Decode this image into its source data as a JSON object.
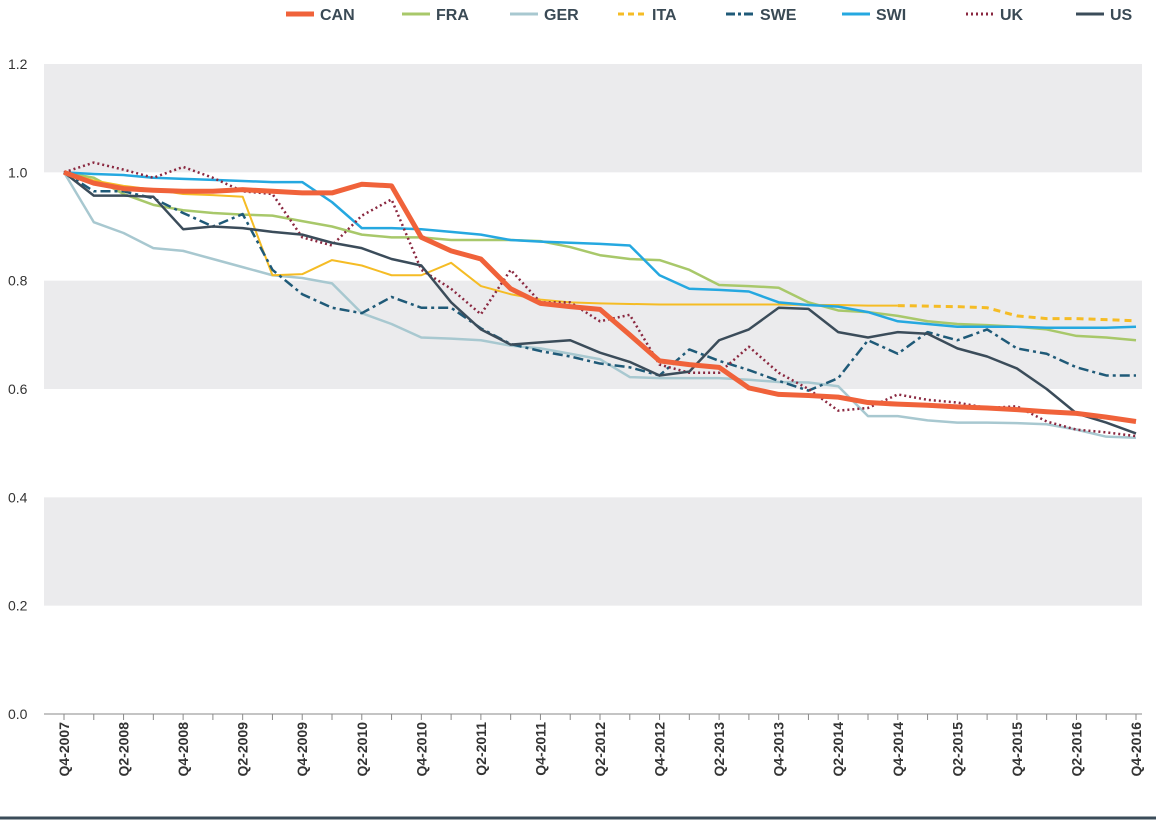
{
  "chart_data": {
    "type": "line",
    "title": "",
    "xlabel": "",
    "ylabel": "",
    "ylim": [
      0,
      1.2
    ],
    "y_ticks": [
      "0.0",
      "0.2",
      "0.4",
      "0.6",
      "0.8",
      "1.0",
      "1.2"
    ],
    "y_tick_values": [
      0,
      0.2,
      0.4,
      0.6,
      0.8,
      1.0,
      1.2
    ],
    "grid": "alternating horizontal bands",
    "legend_position": "top",
    "x_tick_labels": [
      "Q4-2007",
      "Q2-2008",
      "Q4-2008",
      "Q2-2009",
      "Q4-2009",
      "Q2-2010",
      "Q4-2010",
      "Q2-2011",
      "Q4-2011",
      "Q2-2012",
      "Q4-2012",
      "Q2-2013",
      "Q4-2013",
      "Q2-2014",
      "Q4-2014",
      "Q2-2015",
      "Q4-2015",
      "Q2-2016",
      "Q4-2016"
    ],
    "x": [
      "Q4-2007",
      "Q1-2008",
      "Q2-2008",
      "Q3-2008",
      "Q4-2008",
      "Q1-2009",
      "Q2-2009",
      "Q3-2009",
      "Q4-2009",
      "Q1-2010",
      "Q2-2010",
      "Q3-2010",
      "Q4-2010",
      "Q1-2011",
      "Q2-2011",
      "Q3-2011",
      "Q4-2011",
      "Q1-2012",
      "Q2-2012",
      "Q3-2012",
      "Q4-2012",
      "Q1-2013",
      "Q2-2013",
      "Q3-2013",
      "Q4-2013",
      "Q1-2014",
      "Q2-2014",
      "Q3-2014",
      "Q4-2014",
      "Q1-2015",
      "Q2-2015",
      "Q3-2015",
      "Q4-2015",
      "Q1-2016",
      "Q2-2016",
      "Q3-2016",
      "Q4-2016"
    ],
    "series": [
      {
        "name": "CAN",
        "color": "#f0623a",
        "style": "solid-thick",
        "values": [
          1.0,
          0.98,
          0.97,
          0.967,
          0.965,
          0.965,
          0.968,
          0.965,
          0.962,
          0.962,
          0.978,
          0.975,
          0.88,
          0.855,
          0.84,
          0.785,
          0.758,
          0.752,
          0.747,
          0.7,
          0.652,
          0.645,
          0.64,
          0.602,
          0.59,
          0.588,
          0.585,
          0.575,
          0.572,
          0.57,
          0.567,
          0.565,
          0.562,
          0.558,
          0.555,
          0.548,
          0.54
        ]
      },
      {
        "name": "FRA",
        "color": "#a8c86a",
        "style": "solid",
        "values": [
          1.0,
          0.99,
          0.96,
          0.94,
          0.93,
          0.925,
          0.922,
          0.92,
          0.91,
          0.9,
          0.885,
          0.88,
          0.88,
          0.875,
          0.875,
          0.875,
          0.873,
          0.862,
          0.847,
          0.84,
          0.838,
          0.82,
          0.792,
          0.79,
          0.787,
          0.76,
          0.745,
          0.742,
          0.735,
          0.725,
          0.72,
          0.718,
          0.715,
          0.71,
          0.698,
          0.695,
          0.69
        ]
      },
      {
        "name": "GER",
        "color": "#a8c8d0",
        "style": "solid",
        "values": [
          1.0,
          0.908,
          0.888,
          0.86,
          0.855,
          0.84,
          0.825,
          0.81,
          0.805,
          0.795,
          0.74,
          0.72,
          0.695,
          0.693,
          0.69,
          0.68,
          0.675,
          0.665,
          0.655,
          0.622,
          0.62,
          0.62,
          0.62,
          0.617,
          0.613,
          0.612,
          0.605,
          0.55,
          0.55,
          0.542,
          0.538,
          0.538,
          0.537,
          0.535,
          0.525,
          0.512,
          0.51
        ]
      },
      {
        "name": "ITA",
        "color": "#f5bc25",
        "style": "solid-then-dashed",
        "values": [
          1.0,
          0.985,
          0.975,
          0.968,
          0.96,
          0.958,
          0.955,
          0.81,
          0.812,
          0.838,
          0.828,
          0.81,
          0.81,
          0.833,
          0.79,
          0.775,
          0.765,
          0.76,
          0.758,
          0.757,
          0.756,
          0.756,
          0.756,
          0.756,
          0.756,
          0.755,
          0.755,
          0.754,
          0.754,
          0.753,
          0.752,
          0.75,
          0.735,
          0.73,
          0.73,
          0.728,
          0.726
        ]
      },
      {
        "name": "SWE",
        "color": "#1f5a78",
        "style": "dash-dot",
        "values": [
          1.0,
          0.965,
          0.965,
          0.952,
          0.925,
          0.9,
          0.923,
          0.82,
          0.775,
          0.75,
          0.74,
          0.77,
          0.75,
          0.75,
          0.712,
          0.683,
          0.67,
          0.66,
          0.647,
          0.64,
          0.625,
          0.673,
          0.652,
          0.635,
          0.615,
          0.597,
          0.62,
          0.69,
          0.665,
          0.705,
          0.69,
          0.71,
          0.675,
          0.665,
          0.64,
          0.625,
          0.625
        ]
      },
      {
        "name": "SWI",
        "color": "#25a8e0",
        "style": "solid",
        "values": [
          1.0,
          0.997,
          0.995,
          0.99,
          0.988,
          0.986,
          0.984,
          0.982,
          0.982,
          0.945,
          0.897,
          0.897,
          0.895,
          0.89,
          0.885,
          0.875,
          0.872,
          0.87,
          0.868,
          0.865,
          0.81,
          0.785,
          0.783,
          0.78,
          0.76,
          0.755,
          0.752,
          0.742,
          0.725,
          0.72,
          0.715,
          0.715,
          0.715,
          0.713,
          0.713,
          0.713,
          0.715
        ]
      },
      {
        "name": "UK",
        "color": "#8a2840",
        "style": "dotted",
        "values": [
          1.0,
          1.018,
          1.005,
          0.99,
          1.01,
          0.99,
          0.965,
          0.96,
          0.88,
          0.865,
          0.92,
          0.95,
          0.82,
          0.785,
          0.738,
          0.82,
          0.76,
          0.76,
          0.725,
          0.737,
          0.645,
          0.63,
          0.63,
          0.678,
          0.63,
          0.6,
          0.56,
          0.565,
          0.59,
          0.58,
          0.575,
          0.565,
          0.568,
          0.54,
          0.525,
          0.52,
          0.513
        ]
      },
      {
        "name": "US",
        "color": "#3b4c5a",
        "style": "solid",
        "values": [
          1.0,
          0.957,
          0.957,
          0.955,
          0.895,
          0.9,
          0.897,
          0.89,
          0.885,
          0.87,
          0.86,
          0.84,
          0.828,
          0.76,
          0.71,
          0.682,
          0.686,
          0.69,
          0.667,
          0.65,
          0.625,
          0.632,
          0.69,
          0.71,
          0.75,
          0.748,
          0.705,
          0.695,
          0.705,
          0.702,
          0.675,
          0.66,
          0.638,
          0.6,
          0.555,
          0.538,
          0.518
        ]
      }
    ]
  }
}
